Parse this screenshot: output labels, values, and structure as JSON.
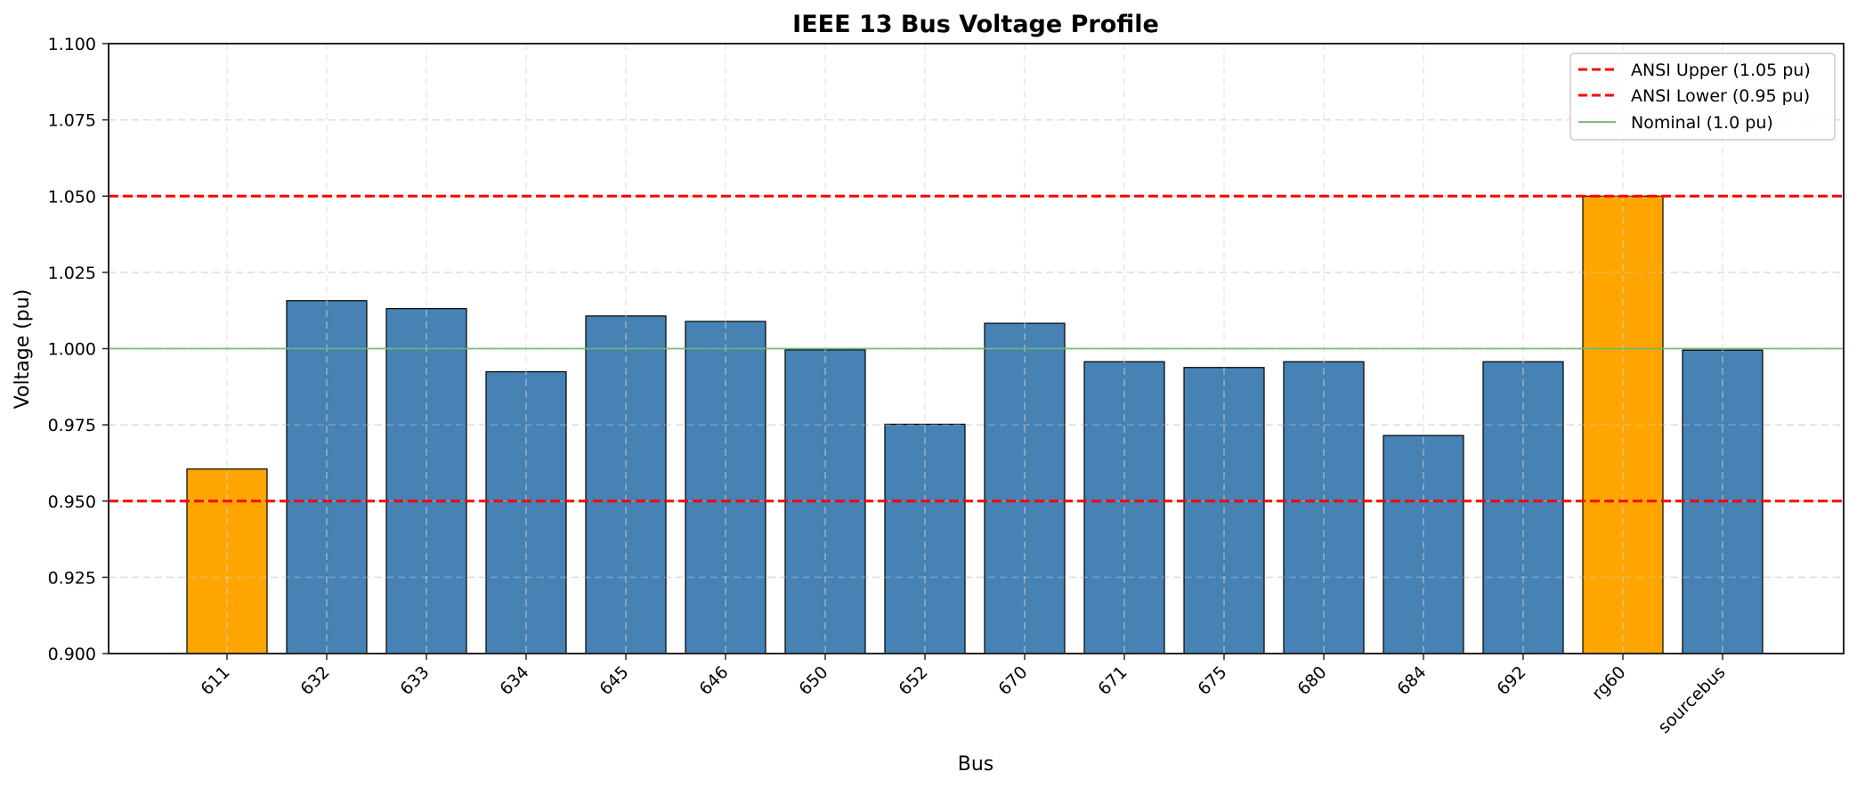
{
  "chart_data": {
    "type": "bar",
    "title": "IEEE 13 Bus Voltage Profile",
    "xlabel": "Bus",
    "ylabel": "Voltage (pu)",
    "ylim": [
      0.9,
      1.1
    ],
    "yticks": [
      0.9,
      0.925,
      0.95,
      0.975,
      1.0,
      1.025,
      1.05,
      1.075,
      1.1
    ],
    "ytick_labels": [
      "0.900",
      "0.925",
      "0.950",
      "0.975",
      "1.000",
      "1.025",
      "1.050",
      "1.075",
      "1.100"
    ],
    "categories": [
      "611",
      "632",
      "633",
      "634",
      "645",
      "646",
      "650",
      "652",
      "670",
      "671",
      "675",
      "680",
      "684",
      "692",
      "rg60",
      "sourcebus"
    ],
    "values": [
      0.9605,
      1.0157,
      1.0131,
      0.9924,
      1.0107,
      1.0089,
      0.9996,
      0.9752,
      1.0083,
      0.9957,
      0.9938,
      0.9957,
      0.9715,
      0.9957,
      1.05,
      0.9995
    ],
    "bar_colors": [
      "#FFA500",
      "#4682B4",
      "#4682B4",
      "#4682B4",
      "#4682B4",
      "#4682B4",
      "#4682B4",
      "#4682B4",
      "#4682B4",
      "#4682B4",
      "#4682B4",
      "#4682B4",
      "#4682B4",
      "#4682B4",
      "#FFA500",
      "#4682B4"
    ],
    "reference_lines": [
      {
        "name": "ANSI Upper (1.05 pu)",
        "value": 1.05,
        "color": "#FF0000",
        "style": "dashed"
      },
      {
        "name": "ANSI Lower (0.95 pu)",
        "value": 0.95,
        "color": "#FF0000",
        "style": "dashed"
      },
      {
        "name": "Nominal (1.0 pu)",
        "value": 1.0,
        "color": "#6DB56D",
        "style": "solid"
      }
    ],
    "legend": {
      "position": "upper right",
      "entries": [
        "ANSI Upper (1.05 pu)",
        "ANSI Lower (0.95 pu)",
        "Nominal (1.0 pu)"
      ]
    },
    "grid": true,
    "xtick_rotation": -45
  },
  "colors": {
    "normal_bar": "#4682B4",
    "violation_bar": "#FFA500",
    "ansi_limit": "#FF0000",
    "nominal": "#6DB56D",
    "grid": "#E0E0E0",
    "axis": "#262626"
  }
}
